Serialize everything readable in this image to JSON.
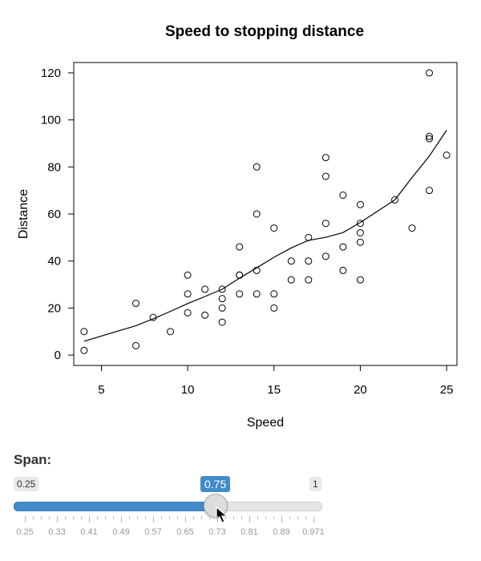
{
  "chart_data": {
    "type": "scatter",
    "title": "Speed to stopping distance",
    "xlabel": "Speed",
    "ylabel": "Distance",
    "xlim": [
      3.4,
      25.6
    ],
    "ylim": [
      -4.4,
      124.4
    ],
    "xticks": [
      5,
      10,
      15,
      20,
      25
    ],
    "yticks": [
      0,
      20,
      40,
      60,
      80,
      100,
      120
    ],
    "grid": false,
    "points": [
      [
        4,
        2
      ],
      [
        4,
        10
      ],
      [
        7,
        4
      ],
      [
        7,
        22
      ],
      [
        8,
        16
      ],
      [
        9,
        10
      ],
      [
        10,
        18
      ],
      [
        10,
        26
      ],
      [
        10,
        34
      ],
      [
        11,
        17
      ],
      [
        11,
        28
      ],
      [
        12,
        14
      ],
      [
        12,
        20
      ],
      [
        12,
        24
      ],
      [
        12,
        28
      ],
      [
        13,
        26
      ],
      [
        13,
        34
      ],
      [
        13,
        34
      ],
      [
        13,
        46
      ],
      [
        14,
        26
      ],
      [
        14,
        36
      ],
      [
        14,
        60
      ],
      [
        14,
        80
      ],
      [
        15,
        20
      ],
      [
        15,
        26
      ],
      [
        15,
        54
      ],
      [
        16,
        32
      ],
      [
        16,
        40
      ],
      [
        17,
        32
      ],
      [
        17,
        40
      ],
      [
        17,
        50
      ],
      [
        18,
        42
      ],
      [
        18,
        56
      ],
      [
        18,
        76
      ],
      [
        18,
        84
      ],
      [
        19,
        36
      ],
      [
        19,
        46
      ],
      [
        19,
        68
      ],
      [
        20,
        32
      ],
      [
        20,
        48
      ],
      [
        20,
        52
      ],
      [
        20,
        56
      ],
      [
        20,
        64
      ],
      [
        22,
        66
      ],
      [
        23,
        54
      ],
      [
        24,
        70
      ],
      [
        24,
        92
      ],
      [
        24,
        93
      ],
      [
        24,
        120
      ],
      [
        25,
        85
      ]
    ],
    "smooth_line": [
      [
        4,
        5.9
      ],
      [
        7,
        12.5
      ],
      [
        8,
        15.4
      ],
      [
        9,
        18.6
      ],
      [
        10,
        21.9
      ],
      [
        11,
        24.9
      ],
      [
        12,
        28.0
      ],
      [
        13,
        32.7
      ],
      [
        14,
        37.1
      ],
      [
        15,
        41.6
      ],
      [
        16,
        45.6
      ],
      [
        17,
        48.8
      ],
      [
        18,
        50.1
      ],
      [
        19,
        52.1
      ],
      [
        20,
        56.4
      ],
      [
        22,
        66.0
      ],
      [
        23,
        75.5
      ],
      [
        24,
        84.6
      ],
      [
        25,
        95.6
      ]
    ]
  },
  "slider": {
    "label": "Span:",
    "min": 0.25,
    "max": 1,
    "value": 0.75,
    "min_text": "0.25",
    "max_text": "1",
    "value_text": "0.75",
    "color": "#428bca",
    "tick_labels": [
      "0.25",
      "0.33",
      "0.41",
      "0.49",
      "0.57",
      "0.65",
      "0.73",
      "0.81",
      "0.89",
      "0.971"
    ]
  }
}
